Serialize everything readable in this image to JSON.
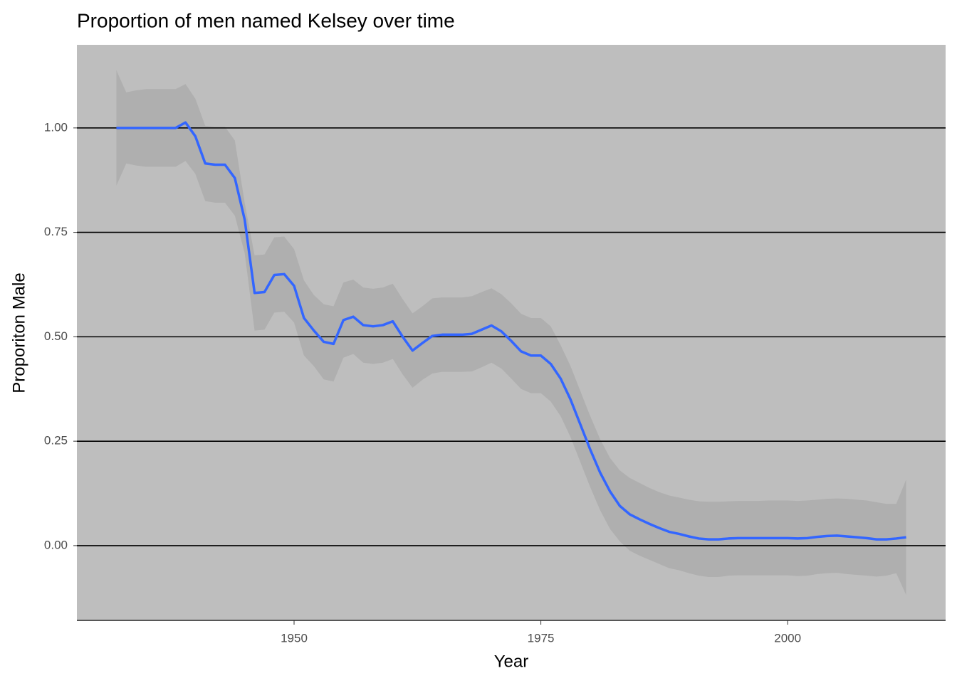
{
  "chart_data": {
    "type": "line",
    "title": "Proportion of men named Kelsey over time",
    "x_label": "Year",
    "y_label": "Proporiton Male",
    "color": "#3366ff",
    "band_color": "#999999",
    "xlim": [
      1928,
      2016
    ],
    "ylim": [
      -0.179,
      1.199
    ],
    "xticks": [
      1950,
      1975,
      2000
    ],
    "yticks": [
      {
        "value": 0,
        "label": "0.00"
      },
      {
        "value": 0.25,
        "label": "0.25"
      },
      {
        "value": 0.5,
        "label": "0.50"
      },
      {
        "value": 0.75,
        "label": "0.75"
      },
      {
        "value": 1,
        "label": "1.00"
      }
    ],
    "grid": true,
    "x": [
      1932,
      1933,
      1934,
      1935,
      1936,
      1937,
      1938,
      1939,
      1940,
      1941,
      1942,
      1943,
      1944,
      1945,
      1946,
      1947,
      1948,
      1949,
      1950,
      1951,
      1952,
      1953,
      1954,
      1955,
      1956,
      1957,
      1958,
      1959,
      1960,
      1961,
      1962,
      1963,
      1964,
      1965,
      1966,
      1967,
      1968,
      1969,
      1970,
      1971,
      1972,
      1973,
      1974,
      1975,
      1976,
      1977,
      1978,
      1979,
      1980,
      1981,
      1982,
      1983,
      1984,
      1985,
      1986,
      1987,
      1988,
      1989,
      1990,
      1991,
      1992,
      1993,
      1994,
      1995,
      1996,
      1997,
      1998,
      1999,
      2000,
      2001,
      2002,
      2003,
      2004,
      2005,
      2006,
      2007,
      2008,
      2009,
      2010,
      2011,
      2012
    ],
    "values": [
      1,
      1,
      1,
      1,
      1,
      1,
      1,
      1.013,
      0.98,
      0.915,
      0.912,
      0.912,
      0.88,
      0.78,
      0.605,
      0.607,
      0.648,
      0.65,
      0.622,
      0.545,
      0.515,
      0.488,
      0.483,
      0.54,
      0.548,
      0.528,
      0.525,
      0.528,
      0.537,
      0.5,
      0.467,
      0.485,
      0.502,
      0.505,
      0.505,
      0.505,
      0.507,
      0.517,
      0.527,
      0.513,
      0.49,
      0.465,
      0.455,
      0.455,
      0.435,
      0.4,
      0.35,
      0.29,
      0.23,
      0.175,
      0.13,
      0.095,
      0.075,
      0.063,
      0.052,
      0.042,
      0.033,
      0.028,
      0.022,
      0.017,
      0.015,
      0.015,
      0.017,
      0.018,
      0.018,
      0.018,
      0.018,
      0.018,
      0.018,
      0.017,
      0.018,
      0.021,
      0.023,
      0.024,
      0.022,
      0.02,
      0.018,
      0.015,
      0.015,
      0.017,
      0.02
    ],
    "upper": [
      1.138,
      1.085,
      1.09,
      1.093,
      1.093,
      1.093,
      1.093,
      1.105,
      1.07,
      1.005,
      1.003,
      1.003,
      0.97,
      0.82,
      0.695,
      0.697,
      0.738,
      0.74,
      0.71,
      0.635,
      0.6,
      0.578,
      0.573,
      0.63,
      0.637,
      0.618,
      0.615,
      0.618,
      0.627,
      0.59,
      0.556,
      0.573,
      0.592,
      0.594,
      0.594,
      0.594,
      0.597,
      0.607,
      0.616,
      0.602,
      0.58,
      0.555,
      0.545,
      0.545,
      0.525,
      0.48,
      0.43,
      0.37,
      0.31,
      0.255,
      0.21,
      0.18,
      0.162,
      0.15,
      0.138,
      0.128,
      0.12,
      0.115,
      0.11,
      0.106,
      0.105,
      0.105,
      0.106,
      0.107,
      0.107,
      0.107,
      0.108,
      0.108,
      0.108,
      0.107,
      0.108,
      0.11,
      0.112,
      0.113,
      0.112,
      0.11,
      0.108,
      0.104,
      0.1,
      0.1,
      0.158
    ],
    "lower": [
      0.862,
      0.915,
      0.91,
      0.907,
      0.907,
      0.907,
      0.907,
      0.921,
      0.89,
      0.825,
      0.821,
      0.821,
      0.79,
      0.7,
      0.515,
      0.517,
      0.558,
      0.56,
      0.534,
      0.455,
      0.43,
      0.398,
      0.393,
      0.45,
      0.459,
      0.438,
      0.435,
      0.438,
      0.447,
      0.41,
      0.378,
      0.397,
      0.412,
      0.416,
      0.416,
      0.416,
      0.417,
      0.427,
      0.438,
      0.424,
      0.4,
      0.375,
      0.365,
      0.365,
      0.345,
      0.31,
      0.26,
      0.2,
      0.14,
      0.085,
      0.04,
      0.01,
      -0.012,
      -0.024,
      -0.034,
      -0.044,
      -0.054,
      -0.059,
      -0.066,
      -0.072,
      -0.075,
      -0.075,
      -0.072,
      -0.071,
      -0.071,
      -0.071,
      -0.071,
      -0.071,
      -0.071,
      -0.073,
      -0.072,
      -0.068,
      -0.066,
      -0.065,
      -0.068,
      -0.07,
      -0.072,
      -0.074,
      -0.072,
      -0.066,
      -0.118
    ]
  }
}
